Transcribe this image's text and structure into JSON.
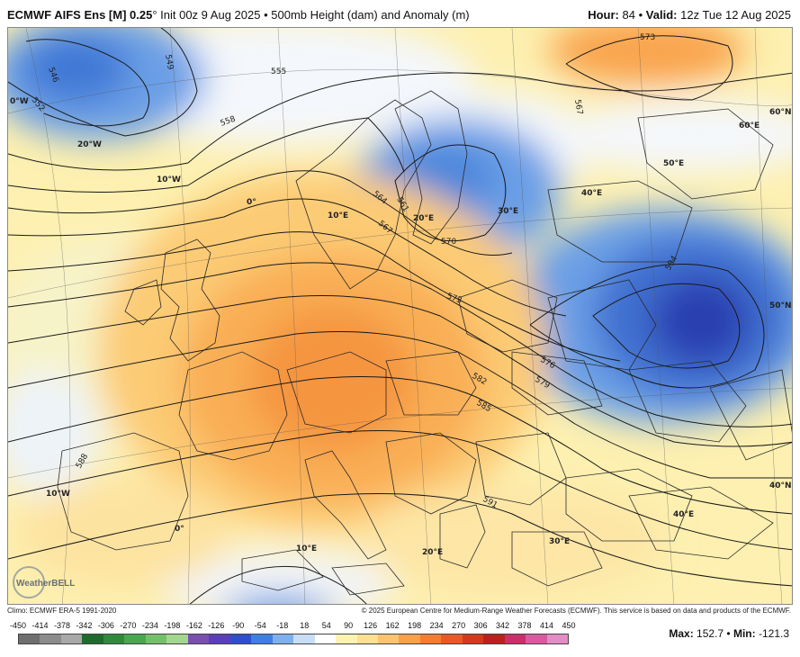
{
  "header": {
    "model": "ECMWF AIFS Ens [M] 0.25",
    "degree": "°",
    "init": "Init 00z 9 Aug 2025",
    "separator": "•",
    "product": "500mb Height (dam) and Anomaly (m)",
    "hour_label": "Hour:",
    "hour_value": "84",
    "valid_label": "Valid:",
    "valid_value": "12z Tue 12 Aug 2025"
  },
  "map": {
    "contour_labels": [
      "546",
      "549",
      "552",
      "555",
      "558",
      "561",
      "564",
      "567",
      "570",
      "573",
      "576",
      "579",
      "582",
      "585",
      "588",
      "591",
      "594",
      "573",
      "567"
    ],
    "grid_labels": [
      "0°W",
      "20°W",
      "10°W",
      "0°",
      "10°E",
      "20°E",
      "30°E",
      "40°E",
      "50°E",
      "60°E",
      "60°N",
      "50°N",
      "40°N",
      "10°W",
      "0°",
      "10°E",
      "20°E",
      "30°E",
      "40°E"
    ],
    "watermark": "WeatherBELL"
  },
  "footer": {
    "climo": "Climo: ECMWF ERA-5 1991-2020",
    "copyright": "© 2025 European Centre for Medium-Range Weather Forecasts (ECMWF). This service is based on data and products of the ECMWF.",
    "max_label": "Max:",
    "max_value": "152.7",
    "min_label": "Min:",
    "min_value": "-121.3"
  },
  "scale": {
    "ticks": [
      "-450",
      "-414",
      "-378",
      "-342",
      "-306",
      "-270",
      "-234",
      "-198",
      "-162",
      "-126",
      "-90",
      "-54",
      "-18",
      "18",
      "54",
      "90",
      "126",
      "162",
      "198",
      "234",
      "270",
      "306",
      "342",
      "378",
      "414",
      "450"
    ],
    "colors": [
      "#6e6e6e",
      "#8c8c8c",
      "#a8a8a8",
      "#1f6b2e",
      "#2f8a3c",
      "#4aa64f",
      "#74c06a",
      "#a3d68f",
      "#7b4fb0",
      "#5a3fb8",
      "#2f4fc8",
      "#3f7fe0",
      "#7fb0ee",
      "#c8def6",
      "#ffffff",
      "#fdf3b0",
      "#fde090",
      "#fcc46e",
      "#f9a04c",
      "#f37d33",
      "#e85a25",
      "#d23a1e",
      "#b8221e",
      "#c8306a",
      "#d85aa0",
      "#e48cc6"
    ]
  }
}
